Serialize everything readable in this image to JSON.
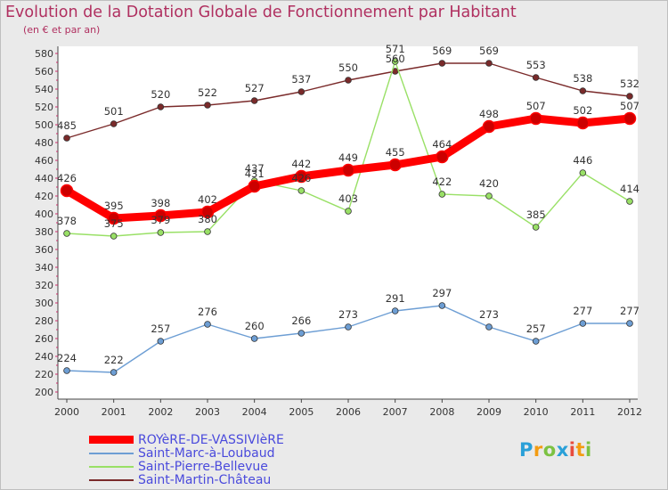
{
  "header": {
    "title": "Evolution de la Dotation Globale de Fonctionnement par Habitant",
    "subtitle": "(en € et par an)"
  },
  "chart_data": {
    "type": "line",
    "title": "Evolution de la Dotation Globale de Fonctionnement par Habitant",
    "subtitle": "(en € et par an)",
    "xlabel": "",
    "ylabel": "",
    "ylim": [
      200,
      580
    ],
    "ytick_step": 20,
    "grid": false,
    "legend_position": "bottom-left",
    "x": [
      2000,
      2001,
      2002,
      2003,
      2004,
      2005,
      2006,
      2007,
      2008,
      2009,
      2010,
      2011,
      2012
    ],
    "series": [
      {
        "name": "Saint-Martin-Château",
        "color": "#7a2a2a",
        "values": [
          485,
          501,
          520,
          522,
          527,
          537,
          550,
          560,
          569,
          569,
          553,
          538,
          532
        ]
      },
      {
        "name": "Saint-Pierre-Bellevue",
        "color": "#99e066",
        "values": [
          378,
          375,
          379,
          380,
          437,
          426,
          403,
          571,
          422,
          420,
          385,
          446,
          414
        ]
      },
      {
        "name": "Saint-Marc-à-Loubaud",
        "color": "#6d9ed4",
        "values": [
          224,
          222,
          257,
          276,
          260,
          266,
          273,
          291,
          297,
          273,
          257,
          277,
          277
        ]
      },
      {
        "name": "ROYèRE-DE-VASSIVIèRE",
        "color": "#ff0000",
        "values": [
          426,
          395,
          398,
          402,
          431,
          442,
          449,
          455,
          464,
          498,
          507,
          502,
          507
        ]
      }
    ]
  },
  "legend": {
    "items": [
      {
        "label": "ROYèRE-DE-VASSIVIèRE",
        "color": "#ff0000"
      },
      {
        "label": "Saint-Marc-à-Loubaud",
        "color": "#6d9ed4"
      },
      {
        "label": "Saint-Pierre-Bellevue",
        "color": "#99e066"
      },
      {
        "label": "Saint-Martin-Château",
        "color": "#7a2a2a"
      }
    ]
  },
  "logo": {
    "letters": [
      "P",
      "r",
      "o",
      "x",
      "i",
      "t",
      "i"
    ],
    "colors": [
      "#2aa0d8",
      "#f39c12",
      "#7cc242",
      "#2aa0d8",
      "#e84c3d",
      "#f39c12",
      "#7cc242"
    ]
  }
}
